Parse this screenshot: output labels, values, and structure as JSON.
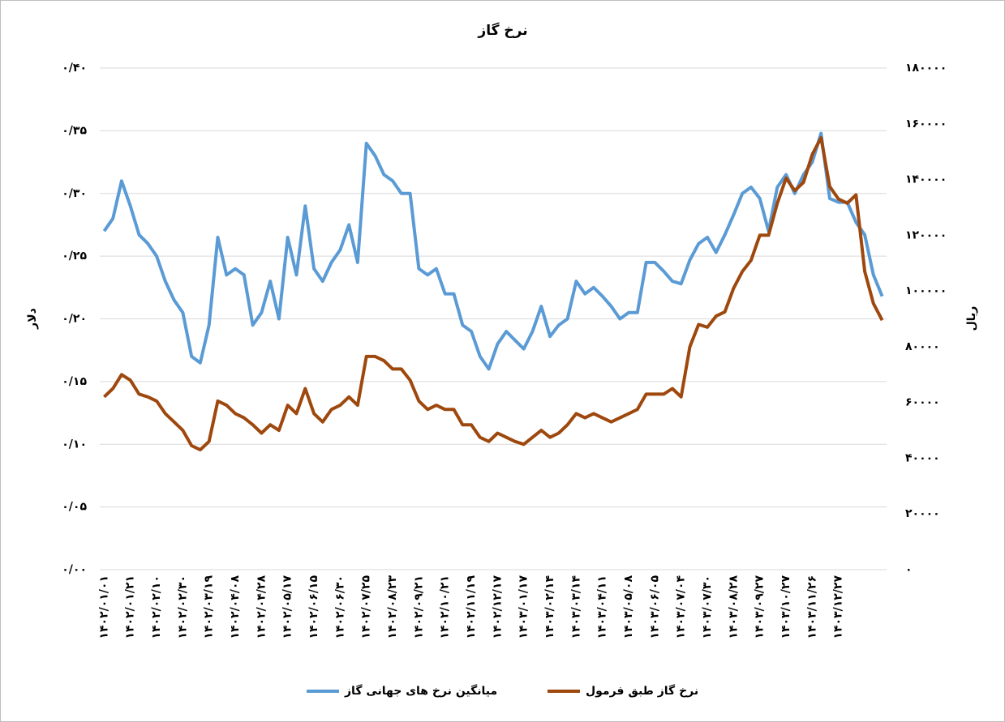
{
  "chart_data": {
    "type": "line",
    "title": "نرخ گاز",
    "y_label": "دلار",
    "y2_label": "ریال",
    "categories": [
      "۱۴۰۲/۰۱/۰۱",
      null,
      null,
      "۱۴۰۲/۰۱/۲۱",
      null,
      null,
      "۱۴۰۲/۰۲/۱۰",
      null,
      null,
      "۱۴۰۲/۰۲/۳۰",
      null,
      null,
      "۱۴۰۲/۰۳/۱۹",
      null,
      null,
      "۱۴۰۲/۰۴/۰۸",
      null,
      null,
      "۱۴۰۲/۰۴/۲۸",
      null,
      null,
      "۱۴۰۲/۰۵/۱۷",
      null,
      null,
      "۱۴۰۲/۰۶/۱۵",
      null,
      null,
      "۱۴۰۲/۰۶/۳۰",
      null,
      null,
      "۱۴۰۲/۰۷/۲۵",
      null,
      null,
      "۱۴۰۲/۰۸/۲۳",
      null,
      null,
      "۱۴۰۲/۰۹/۲۱",
      null,
      null,
      "۱۴۰۲/۱۰/۲۱",
      null,
      null,
      "۱۴۰۲/۱۱/۱۹",
      null,
      null,
      "۱۴۰۲/۱۲/۱۷",
      null,
      null,
      "۱۴۰۳/۰۱/۱۷",
      null,
      null,
      "۱۴۰۳/۰۲/۱۴",
      null,
      null,
      "۱۴۰۳/۰۳/۱۴",
      null,
      null,
      "۱۴۰۳/۰۴/۱۱",
      null,
      null,
      "۱۴۰۳/۰۵/۰۸",
      null,
      null,
      "۱۴۰۳/۰۶/۰۵",
      null,
      null,
      "۱۴۰۳/۰۷/۰۴",
      null,
      null,
      "۱۴۰۳/۰۷/۳۰",
      null,
      null,
      "۱۴۰۳/۰۸/۲۸",
      null,
      null,
      "۱۴۰۳/۰۹/۲۷",
      null,
      null,
      "۱۴۰۳/۱۰/۲۷",
      null,
      null,
      "۱۴۰۳/۱۱/۲۶",
      null,
      null,
      "۱۴۰۳/۱۲/۲۷",
      null,
      null,
      null,
      null,
      null
    ],
    "series": [
      {
        "name": "میانگین نرخ های جهانی گاز",
        "color": "#5b9bd5",
        "axis": "y",
        "values": [
          0.27,
          0.28,
          0.31,
          0.29,
          0.267,
          0.26,
          0.25,
          0.23,
          0.215,
          0.205,
          0.17,
          0.165,
          0.195,
          0.265,
          0.235,
          0.24,
          0.235,
          0.195,
          0.205,
          0.23,
          0.2,
          0.265,
          0.235,
          0.29,
          0.24,
          0.23,
          0.245,
          0.255,
          0.275,
          0.245,
          0.34,
          0.33,
          0.315,
          0.31,
          0.3,
          0.3,
          0.24,
          0.235,
          0.24,
          0.22,
          0.22,
          0.195,
          0.19,
          0.17,
          0.16,
          0.18,
          0.19,
          0.183,
          0.176,
          0.19,
          0.21,
          0.186,
          0.195,
          0.2,
          0.23,
          0.22,
          0.225,
          0.218,
          0.21,
          0.2,
          0.205,
          0.205,
          0.245,
          0.245,
          0.238,
          0.23,
          0.228,
          0.247,
          0.26,
          0.265,
          0.253,
          0.267,
          0.283,
          0.3,
          0.305,
          0.296,
          0.27,
          0.305,
          0.315,
          0.3,
          0.315,
          0.325,
          0.348,
          0.296,
          0.293,
          0.293,
          0.277,
          0.267,
          0.235,
          0.218
        ]
      },
      {
        "name": "نرخ گاز طبق فرمول",
        "color": "#9e480e",
        "axis": "y2",
        "values": [
          62000,
          65000,
          70000,
          68000,
          63000,
          62000,
          60500,
          56000,
          53000,
          50000,
          44500,
          43000,
          46000,
          60500,
          59000,
          56000,
          54500,
          52000,
          49000,
          52000,
          50000,
          59000,
          56000,
          65000,
          56000,
          53000,
          57500,
          59000,
          62000,
          59000,
          76500,
          76500,
          75000,
          72000,
          72000,
          68000,
          60500,
          57500,
          59000,
          57500,
          57500,
          52000,
          52000,
          47500,
          46000,
          49000,
          47500,
          46000,
          45000,
          47500,
          50000,
          47500,
          49000,
          52000,
          56000,
          54500,
          56000,
          54500,
          53000,
          54500,
          56000,
          57500,
          63000,
          63000,
          63000,
          65000,
          62000,
          80000,
          88000,
          87000,
          91000,
          92500,
          101000,
          107000,
          111000,
          120000,
          120000,
          131500,
          140500,
          136000,
          139000,
          149000,
          155000,
          137500,
          133000,
          131500,
          134500,
          107000,
          95500,
          89500
        ]
      }
    ],
    "ylim": [
      0,
      0.4
    ],
    "yticks": [
      {
        "value": 0,
        "label": "۰/۰۰"
      },
      {
        "value": 0.05,
        "label": "۰/۰۵"
      },
      {
        "value": 0.1,
        "label": "۰/۱۰"
      },
      {
        "value": 0.15,
        "label": "۰/۱۵"
      },
      {
        "value": 0.2,
        "label": "۰/۲۰"
      },
      {
        "value": 0.25,
        "label": "۰/۲۵"
      },
      {
        "value": 0.3,
        "label": "۰/۳۰"
      },
      {
        "value": 0.35,
        "label": "۰/۳۵"
      },
      {
        "value": 0.4,
        "label": "۰/۴۰"
      }
    ],
    "y2lim": [
      0,
      180000
    ],
    "y2ticks": [
      {
        "value": 0,
        "label": "۰"
      },
      {
        "value": 20000,
        "label": "۲۰۰۰۰"
      },
      {
        "value": 40000,
        "label": "۴۰۰۰۰"
      },
      {
        "value": 60000,
        "label": "۶۰۰۰۰"
      },
      {
        "value": 80000,
        "label": "۸۰۰۰۰"
      },
      {
        "value": 100000,
        "label": "۱۰۰۰۰۰"
      },
      {
        "value": 120000,
        "label": "۱۲۰۰۰۰"
      },
      {
        "value": 140000,
        "label": "۱۴۰۰۰۰"
      },
      {
        "value": 160000,
        "label": "۱۶۰۰۰۰"
      },
      {
        "value": 180000,
        "label": "۱۸۰۰۰۰"
      }
    ],
    "grid": true,
    "legend": "bottom"
  }
}
